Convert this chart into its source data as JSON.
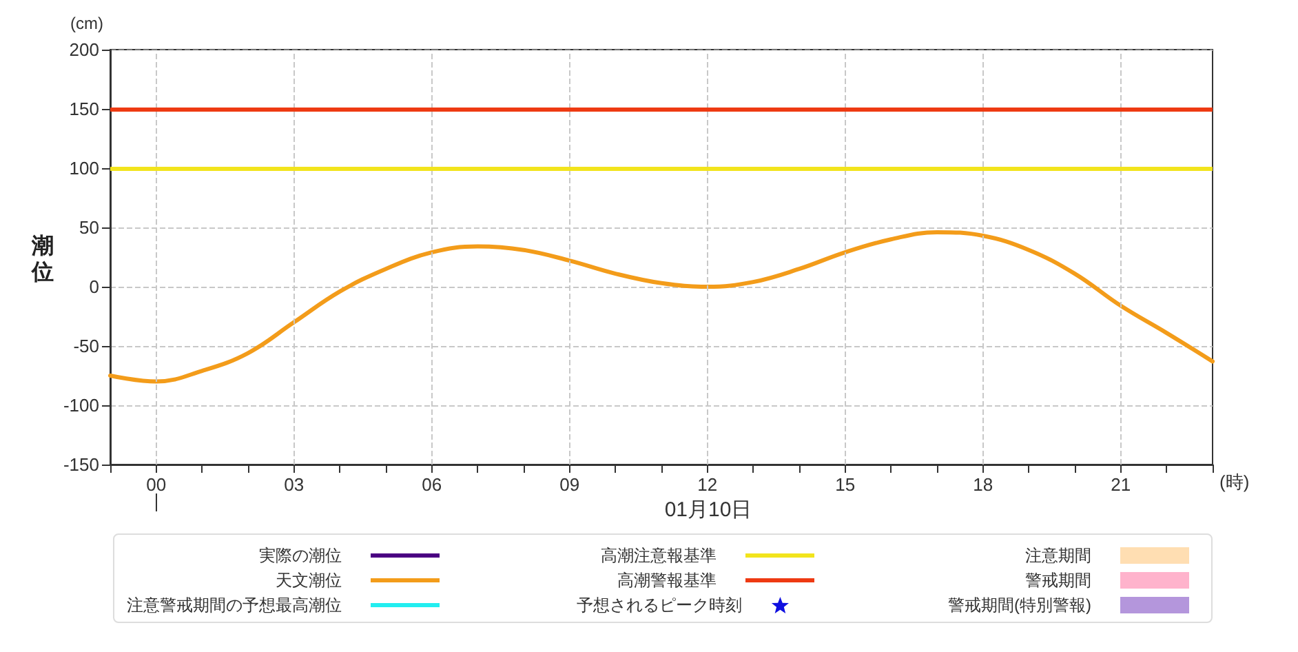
{
  "chart_data": {
    "type": "line",
    "ylabel": "潮位",
    "xlabel": "(時)",
    "annotations": [
      "(cm)",
      "01月10日"
    ],
    "x": [
      -1,
      0,
      1,
      2,
      3,
      4,
      5,
      6,
      7,
      8,
      9,
      10,
      11,
      12,
      13,
      14,
      15,
      16,
      17,
      18,
      19,
      20,
      21,
      22,
      23
    ],
    "series": [
      {
        "name": "実際の潮位",
        "color": "#4b0082",
        "values": [
          null,
          null,
          null,
          null,
          null,
          null,
          null,
          null,
          null,
          null,
          null,
          null,
          null,
          null,
          null,
          null,
          null,
          null,
          null,
          null,
          null,
          null,
          null,
          null,
          null
        ]
      },
      {
        "name": "天文潮位",
        "color": "#f39c1a",
        "values": [
          -75,
          -80,
          -71,
          -56,
          -30,
          -4,
          15,
          29,
          34,
          31,
          22,
          11,
          3,
          0,
          4,
          15,
          29,
          40,
          46,
          43,
          31,
          11,
          -16,
          -39,
          -63
        ]
      },
      {
        "name": "注意警戒期間の予想最高潮位",
        "color": "#22eef0",
        "values": [
          null,
          null,
          null,
          null,
          null,
          null,
          null,
          null,
          null,
          null,
          null,
          null,
          null,
          null,
          null,
          null,
          null,
          null,
          null,
          null,
          null,
          null,
          null,
          null,
          null
        ]
      },
      {
        "name": "予想されるピーク時刻",
        "type": "scatter",
        "marker": "star",
        "color": "#1010e0",
        "values": [
          null,
          null,
          null,
          null,
          null,
          null,
          null,
          null,
          null,
          null,
          null,
          null,
          null,
          null,
          null,
          null,
          null,
          null,
          null,
          null,
          null,
          null,
          null,
          null,
          null
        ]
      },
      {
        "name": "注意期間",
        "type": "area",
        "color": "#ffdeb2",
        "values": [
          null,
          null,
          null,
          null,
          null,
          null,
          null,
          null,
          null,
          null,
          null,
          null,
          null,
          null,
          null,
          null,
          null,
          null,
          null,
          null,
          null,
          null,
          null,
          null,
          null
        ]
      },
      {
        "name": "警戒期間",
        "type": "area",
        "color": "#ffb3cc",
        "values": [
          null,
          null,
          null,
          null,
          null,
          null,
          null,
          null,
          null,
          null,
          null,
          null,
          null,
          null,
          null,
          null,
          null,
          null,
          null,
          null,
          null,
          null,
          null,
          null,
          null
        ]
      },
      {
        "name": "警戒期間(特別警報)",
        "type": "area",
        "color": "#b496dc",
        "values": [
          null,
          null,
          null,
          null,
          null,
          null,
          null,
          null,
          null,
          null,
          null,
          null,
          null,
          null,
          null,
          null,
          null,
          null,
          null,
          null,
          null,
          null,
          null,
          null,
          null
        ]
      }
    ],
    "ref_lines": [
      {
        "axis": "y",
        "value": 100,
        "label": "高潮注意報基準",
        "color": "#f2e41c"
      },
      {
        "axis": "y",
        "value": 150,
        "label": "高潮警報基準",
        "color": "#ee3a12"
      }
    ],
    "xlim": [
      -1,
      23
    ],
    "xticks": [
      {
        "value": -1,
        "label": null
      },
      {
        "value": 0,
        "label": "00"
      },
      {
        "value": 1,
        "label": null
      },
      {
        "value": 2,
        "label": null
      },
      {
        "value": 3,
        "label": "03"
      },
      {
        "value": 4,
        "label": null
      },
      {
        "value": 5,
        "label": null
      },
      {
        "value": 6,
        "label": "06"
      },
      {
        "value": 7,
        "label": null
      },
      {
        "value": 8,
        "label": null
      },
      {
        "value": 9,
        "label": "09"
      },
      {
        "value": 10,
        "label": null
      },
      {
        "value": 11,
        "label": null
      },
      {
        "value": 12,
        "label": "12"
      },
      {
        "value": 13,
        "label": null
      },
      {
        "value": 14,
        "label": null
      },
      {
        "value": 15,
        "label": "15"
      },
      {
        "value": 16,
        "label": null
      },
      {
        "value": 17,
        "label": null
      },
      {
        "value": 18,
        "label": "18"
      },
      {
        "value": 19,
        "label": null
      },
      {
        "value": 20,
        "label": null
      },
      {
        "value": 21,
        "label": "21"
      },
      {
        "value": 22,
        "label": null
      },
      {
        "value": 23,
        "label": null
      }
    ],
    "ylim": [
      -150,
      200
    ],
    "yticks": [
      -150,
      -100,
      -50,
      0,
      50,
      100,
      150,
      200
    ],
    "grid": true,
    "legend": "bottom",
    "marker": "none"
  }
}
